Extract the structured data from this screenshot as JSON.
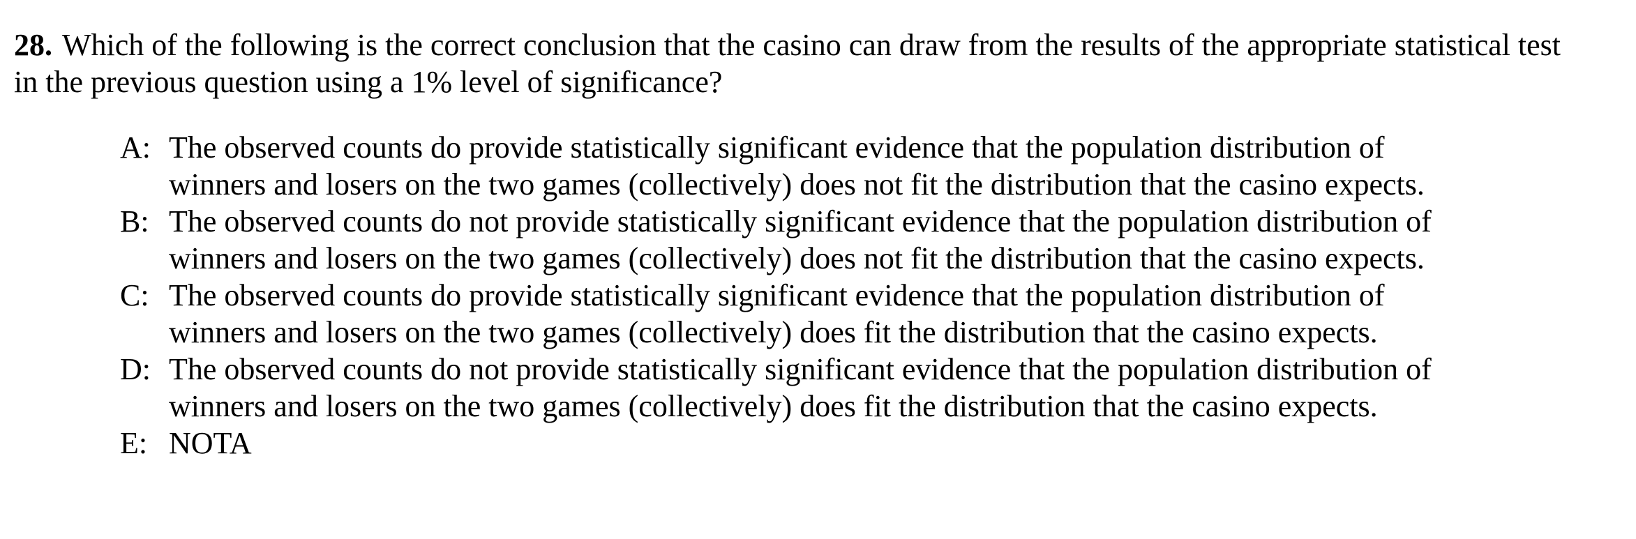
{
  "question": {
    "number": "28.",
    "text": "Which of the following is the correct conclusion that the casino can draw from the results of the appropriate statistical test in the previous question using a 1% level of significance?"
  },
  "choices": [
    {
      "letter": "A:",
      "text": "The observed counts do provide statistically significant evidence that the population distribution of winners and losers on the two games (collectively) does not fit the distribution that the casino expects."
    },
    {
      "letter": "B:",
      "text": "The observed counts do not provide statistically significant evidence that the population distribution of winners and losers on the two games (collectively) does not fit the distribution that the casino expects."
    },
    {
      "letter": "C:",
      "text": "The observed counts do provide statistically significant evidence that the population distribution of winners and losers on the two games (collectively) does fit the distribution that the casino expects."
    },
    {
      "letter": "D:",
      "text": "The observed counts do not provide statistically significant evidence that the population distribution of winners and losers on the two games (collectively) does fit the distribution that the casino expects."
    },
    {
      "letter": "E:",
      "text": "NOTA"
    }
  ]
}
